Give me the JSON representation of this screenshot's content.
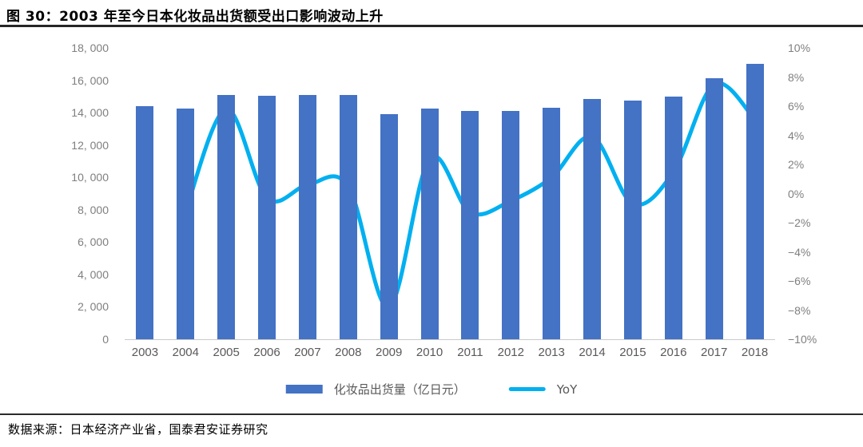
{
  "header": {
    "title": "图 30：2003 年至今日本化妆品出货额受出口影响波动上升"
  },
  "footer": {
    "source": "数据来源：日本经济产业省，国泰君安证券研究"
  },
  "colors": {
    "bar": "#4472C4",
    "line": "#00B0F0",
    "axis_text": "#7f7f7f",
    "x_text": "#595959",
    "baseline": "#c9c9c9",
    "rule": "#262626"
  },
  "chart_data": {
    "type": "bar+line combo",
    "categories": [
      "2003",
      "2004",
      "2005",
      "2006",
      "2007",
      "2008",
      "2009",
      "2010",
      "2011",
      "2012",
      "2013",
      "2014",
      "2015",
      "2016",
      "2017",
      "2018"
    ],
    "series": [
      {
        "name": "化妆品出货量（亿日元）",
        "type": "bar",
        "axis": "left",
        "color": "#4472C4",
        "values": [
          14400,
          14250,
          15100,
          15050,
          15100,
          15100,
          13900,
          14250,
          14100,
          14100,
          14300,
          14850,
          14750,
          15000,
          16150,
          17000
        ]
      },
      {
        "name": "YoY",
        "type": "line",
        "axis": "right",
        "color": "#00B0F0",
        "values": [
          null,
          -1.2,
          5.8,
          -0.3,
          0.6,
          0.5,
          -7.8,
          2.4,
          -1.3,
          -0.5,
          1.1,
          3.9,
          -0.7,
          1.5,
          7.5,
          5.1
        ]
      }
    ],
    "left_axis": {
      "min": 0,
      "max": 18000,
      "step": 2000,
      "tick_labels": [
        "18, 000",
        "16, 000",
        "14, 000",
        "12, 000",
        "10, 000",
        "8, 000",
        "6, 000",
        "4, 000",
        "2, 000",
        "0"
      ]
    },
    "right_axis": {
      "min": -10,
      "max": 10,
      "step": 2,
      "unit": "%",
      "tick_labels": [
        "10%",
        "8%",
        "6%",
        "4%",
        "2%",
        "0%",
        "−2%",
        "−4%",
        "−6%",
        "−8%",
        "−10%"
      ]
    },
    "grid": false,
    "legend_position": "bottom"
  }
}
